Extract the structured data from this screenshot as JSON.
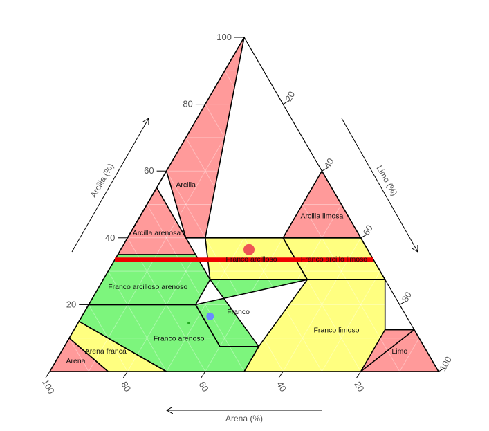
{
  "chart_data": {
    "type": "ternary",
    "axes": {
      "bottom": {
        "label": "Arena (%)",
        "component": "sand",
        "direction": "right-to-left"
      },
      "left": {
        "label": "Arcilla (%)",
        "component": "clay"
      },
      "right": {
        "label": "Limo (%)",
        "component": "silt"
      }
    },
    "ticks": {
      "clay": [
        "20",
        "40",
        "60",
        "80",
        "100"
      ],
      "silt": [
        "20",
        "40",
        "60",
        "80",
        "100"
      ],
      "sand": [
        "20",
        "40",
        "60",
        "80",
        "100"
      ]
    },
    "grid": true,
    "colors": {
      "clay_classes": "#ff9a9a",
      "loam_classes": "#ffff80",
      "sandy_loam_classes": "#7df57d",
      "marker_line": "#ee0000",
      "point_red": "#ee5555",
      "point_blue": "#6a8cff",
      "point_green": "#22aa22"
    },
    "regions": [
      {
        "name": "Arcilla",
        "color": "#ff9a9a",
        "points": [
          [
            40,
            20,
            40
          ],
          [
            100,
            0,
            0
          ],
          [
            40,
            0,
            60
          ],
          [
            60,
            0,
            40
          ],
          [
            40,
            15,
            45
          ]
        ]
      },
      {
        "name": "Arcilla limosa",
        "color": "#ff9a9a",
        "points": [
          [
            60,
            40,
            0
          ],
          [
            40,
            60,
            0
          ],
          [
            40,
            40,
            20
          ]
        ]
      },
      {
        "name": "Arcilla arenosa",
        "color": "#ff9a9a",
        "points": [
          [
            55,
            0,
            45
          ],
          [
            35,
            0,
            65
          ],
          [
            35,
            20,
            45
          ]
        ]
      },
      {
        "name": "Franco arcilloso",
        "color": "#ffff80",
        "points": [
          [
            40,
            20,
            40
          ],
          [
            40,
            40,
            20
          ],
          [
            27.5,
            52.5,
            20
          ],
          [
            27.5,
            27.5,
            45
          ]
        ]
      },
      {
        "name": "Franco arcillo limoso",
        "color": "#ffff80",
        "points": [
          [
            40,
            40,
            20
          ],
          [
            40,
            60,
            0
          ],
          [
            27.5,
            72.5,
            0
          ],
          [
            27.5,
            52.5,
            20
          ]
        ]
      },
      {
        "name": "Franco arcilloso arenoso",
        "color": "#7df57d",
        "points": [
          [
            35,
            0,
            65
          ],
          [
            35,
            20,
            45
          ],
          [
            27.5,
            27.5,
            45
          ],
          [
            20,
            27.5,
            52.5
          ],
          [
            20,
            0,
            80
          ],
          [
            15,
            0,
            85
          ]
        ]
      },
      {
        "name": "Franco",
        "color": "#7df57d",
        "points": [
          [
            27.5,
            27.5,
            45
          ],
          [
            27.5,
            52.5,
            20
          ],
          [
            20,
            27.5,
            52.5
          ],
          [
            7.5,
            40,
            52.5
          ],
          [
            7.5,
            50,
            42.5
          ]
        ]
      },
      {
        "name": "Franco limoso",
        "color": "#ffff80",
        "points": [
          [
            27.5,
            52.5,
            20
          ],
          [
            27.5,
            72.5,
            0
          ],
          [
            12.5,
            80,
            7.5
          ],
          [
            12.5,
            87.5,
            0
          ],
          [
            0,
            80,
            20
          ],
          [
            0,
            50,
            50
          ],
          [
            7.5,
            50,
            42.5
          ]
        ]
      },
      {
        "name": "Limo",
        "color": "#ff9a9a",
        "points": [
          [
            12.5,
            80,
            7.5
          ],
          [
            12.5,
            87.5,
            0
          ],
          [
            0,
            100,
            0
          ],
          [
            0,
            80,
            20
          ]
        ]
      },
      {
        "name": "Franco arenoso",
        "color": "#7df57d",
        "points": [
          [
            20,
            0,
            80
          ],
          [
            20,
            27.5,
            52.5
          ],
          [
            7.5,
            40,
            52.5
          ],
          [
            7.5,
            50,
            42.5
          ],
          [
            0,
            50,
            50
          ],
          [
            0,
            30,
            70
          ],
          [
            15,
            0,
            85
          ]
        ]
      },
      {
        "name": "Arena franca",
        "color": "#ffff80",
        "points": [
          [
            15,
            0,
            85
          ],
          [
            0,
            30,
            70
          ],
          [
            0,
            15,
            85
          ],
          [
            10,
            0,
            90
          ]
        ]
      },
      {
        "name": "Arena",
        "color": "#ff9a9a",
        "points": [
          [
            10,
            0,
            90
          ],
          [
            0,
            15,
            85
          ],
          [
            0,
            0,
            100
          ]
        ]
      }
    ],
    "marker_line": {
      "clay": 33.5,
      "color": "#ee0000"
    },
    "points": [
      {
        "clay": 36.5,
        "silt": 33,
        "sand": 30.5,
        "color": "#ee5555",
        "size": "large"
      },
      {
        "clay": 16.5,
        "silt": 33,
        "sand": 50.5,
        "color": "#6a8cff",
        "size": "medium"
      },
      {
        "clay": 14.5,
        "silt": 28.5,
        "sand": 57,
        "color": "#22aa22",
        "size": "small"
      }
    ]
  }
}
